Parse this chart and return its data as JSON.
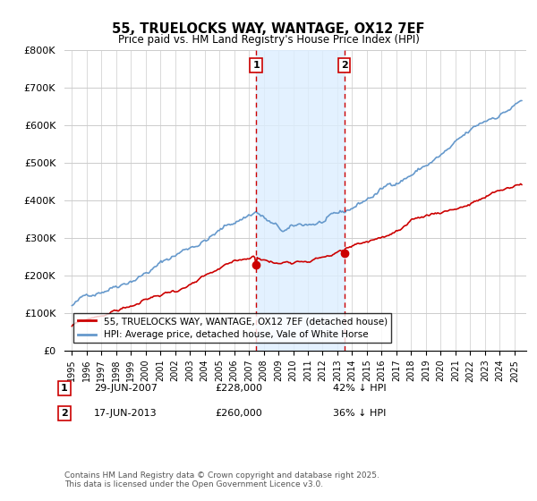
{
  "title1": "55, TRUELOCKS WAY, WANTAGE, OX12 7EF",
  "title2": "Price paid vs. HM Land Registry's House Price Index (HPI)",
  "legend1": "55, TRUELOCKS WAY, WANTAGE, OX12 7EF (detached house)",
  "legend2": "HPI: Average price, detached house, Vale of White Horse",
  "copyright": "Contains HM Land Registry data © Crown copyright and database right 2025.\nThis data is licensed under the Open Government Licence v3.0.",
  "sale1_date": "29-JUN-2007",
  "sale1_price": "£228,000",
  "sale1_hpi": "42% ↓ HPI",
  "sale2_date": "17-JUN-2013",
  "sale2_price": "£260,000",
  "sale2_hpi": "36% ↓ HPI",
  "color_red": "#cc0000",
  "color_blue": "#6699cc",
  "color_vline": "#cc0000",
  "color_shade": "#ddeeff",
  "ylim": [
    0,
    800000
  ],
  "yticks": [
    0,
    100000,
    200000,
    300000,
    400000,
    500000,
    600000,
    700000,
    800000
  ],
  "sale1_x": 2007.49,
  "sale2_x": 2013.46,
  "xmin": 1994.5,
  "xmax": 2025.8
}
